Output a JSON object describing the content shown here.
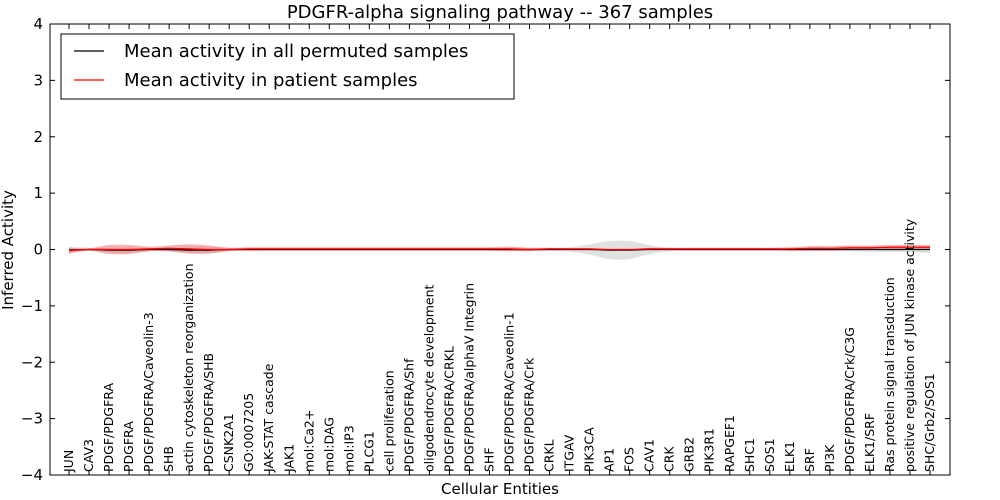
{
  "chart_data": {
    "type": "line",
    "title": "PDGFR-alpha signaling pathway -- 367 samples",
    "xlabel": "Cellular Entities",
    "ylabel": "Inferred Activity",
    "ylim": [
      -4,
      4
    ],
    "yticks": [
      -4,
      -3,
      -2,
      -1,
      0,
      1,
      2,
      3,
      4
    ],
    "ytick_labels": [
      "−4",
      "−3",
      "−2",
      "−1",
      "0",
      "1",
      "2",
      "3",
      "4"
    ],
    "legend_position": "top-left",
    "categories": [
      "JUN",
      "CAV3",
      "PDGF/PDGFRA",
      "PDGFRA",
      "PDGF/PDGFRA/Caveolin-3",
      "SHB",
      "actin cytoskeleton reorganization",
      "PDGF/PDGFRA/SHB",
      "CSNK2A1",
      "GO:0007205",
      "JAK-STAT cascade",
      "JAK1",
      "mol:Ca2+",
      "mol:DAG",
      "mol:IP3",
      "PLCG1",
      "cell proliferation",
      "PDGF/PDGFRA/Shf",
      "oligodendrocyte development",
      "PDGF/PDGFRA/CRKL",
      "PDGF/PDGFRA/alphaV Integrin",
      "SHF",
      "PDGF/PDGFRA/Caveolin-1",
      "PDGF/PDGFRA/Crk",
      "CRKL",
      "ITGAV",
      "PIK3CA",
      "AP1",
      "FOS",
      "CAV1",
      "CRK",
      "GRB2",
      "PIK3R1",
      "RAPGEF1",
      "SHC1",
      "SOS1",
      "ELK1",
      "SRF",
      "PI3K",
      "PDGF/PDGFRA/Crk/C3G",
      "ELK1/SRF",
      "Ras protein signal transduction",
      "positive regulation of JUN kinase activity",
      "SHC/Grb2/SOS1"
    ],
    "series": [
      {
        "name": "Mean activity in all permuted samples",
        "color": "#000000",
        "values": [
          -0.01,
          0.0,
          -0.01,
          -0.01,
          0.0,
          0.0,
          -0.01,
          -0.01,
          0.0,
          0.0,
          0.0,
          0.0,
          0.0,
          0.0,
          0.0,
          0.0,
          0.0,
          0.0,
          0.0,
          0.0,
          0.0,
          0.0,
          0.0,
          0.0,
          0.0,
          0.0,
          0.0,
          -0.01,
          -0.01,
          0.0,
          0.0,
          0.0,
          0.0,
          0.0,
          0.0,
          0.0,
          0.0,
          0.0,
          0.0,
          0.0,
          0.0,
          0.0,
          0.0,
          0.0
        ],
        "band": [
          0.06,
          0.03,
          0.04,
          0.05,
          0.03,
          0.04,
          0.06,
          0.06,
          0.03,
          0.03,
          0.03,
          0.03,
          0.03,
          0.03,
          0.03,
          0.03,
          0.03,
          0.03,
          0.03,
          0.03,
          0.03,
          0.03,
          0.03,
          0.03,
          0.03,
          0.04,
          0.09,
          0.16,
          0.16,
          0.08,
          0.03,
          0.03,
          0.03,
          0.03,
          0.03,
          0.03,
          0.03,
          0.03,
          0.03,
          0.03,
          0.04,
          0.04,
          0.05,
          0.06
        ],
        "band_color": "#c8c8c8"
      },
      {
        "name": "Mean activity in patient samples",
        "color": "#ff0000",
        "values": [
          -0.02,
          0.0,
          0.0,
          0.0,
          0.01,
          0.02,
          0.01,
          0.0,
          0.0,
          0.01,
          0.01,
          0.01,
          0.01,
          0.01,
          0.01,
          0.01,
          0.01,
          0.01,
          0.01,
          0.01,
          0.01,
          0.01,
          0.01,
          0.0,
          0.01,
          0.01,
          0.01,
          0.0,
          0.0,
          0.01,
          0.01,
          0.01,
          0.01,
          0.01,
          0.01,
          0.01,
          0.01,
          0.02,
          0.02,
          0.03,
          0.03,
          0.04,
          0.04,
          0.04
        ],
        "band": [
          0.05,
          0.02,
          0.08,
          0.08,
          0.04,
          0.05,
          0.08,
          0.07,
          0.03,
          0.03,
          0.03,
          0.03,
          0.03,
          0.03,
          0.03,
          0.03,
          0.03,
          0.03,
          0.03,
          0.03,
          0.03,
          0.03,
          0.04,
          0.03,
          0.02,
          0.01,
          0.01,
          0.01,
          0.01,
          0.02,
          0.02,
          0.02,
          0.02,
          0.02,
          0.02,
          0.02,
          0.03,
          0.04,
          0.04,
          0.04,
          0.04,
          0.04,
          0.04,
          0.04
        ],
        "band_color": "#f08080"
      }
    ]
  }
}
